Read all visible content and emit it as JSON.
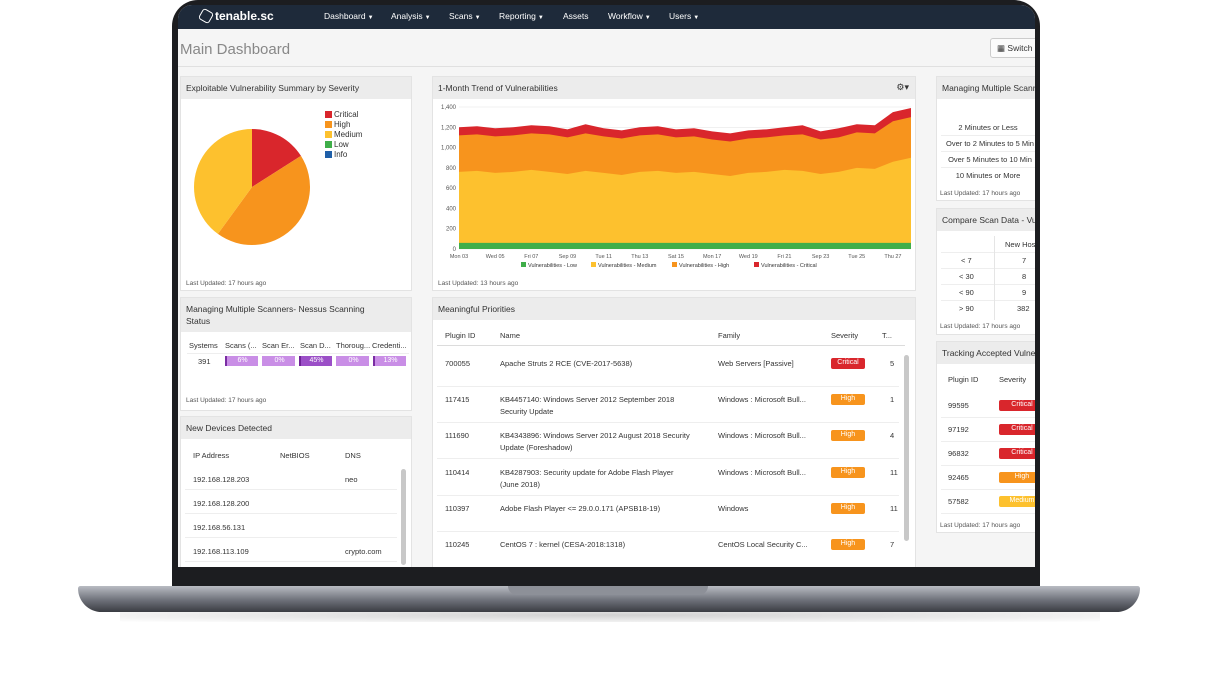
{
  "brand": {
    "name": "tenable.sc"
  },
  "nav": {
    "items": [
      {
        "label": "Dashboard"
      },
      {
        "label": "Analysis"
      },
      {
        "label": "Scans"
      },
      {
        "label": "Reporting"
      },
      {
        "label": "Assets"
      },
      {
        "label": "Workflow"
      },
      {
        "label": "Users"
      }
    ]
  },
  "page": {
    "title": "Main Dashboard",
    "switch_label": "Switch"
  },
  "colors": {
    "critical": "#d9262c",
    "high": "#f7941d",
    "medium": "#fdc12e",
    "low": "#3fae49",
    "info": "#1f5fa8",
    "nav_bg": "#1e2a3a"
  },
  "exploitable": {
    "title": "Exploitable Vulnerability Summary by Severity",
    "legend": [
      "Critical",
      "High",
      "Medium",
      "Low",
      "Info"
    ],
    "updated": "Last Updated: 17 hours ago",
    "chart_data": {
      "type": "pie",
      "categories": [
        "Critical",
        "High",
        "Medium",
        "Low",
        "Info"
      ],
      "values": [
        16,
        44,
        40,
        0,
        0
      ]
    }
  },
  "trend": {
    "title": "1-Month Trend of Vulnerabilities",
    "updated": "Last Updated: 13 hours ago",
    "chart_data": {
      "type": "area",
      "x": [
        "Mon 03",
        "",
        "Wed 05",
        "",
        "Fri 07",
        "",
        "Sep 09",
        "",
        "Tue 11",
        "",
        "Thu 13",
        "",
        "Sat 15",
        "",
        "Mon 17",
        "",
        "Wed 19",
        "",
        "Fri 21",
        "",
        "Sep 23",
        "",
        "Tue 25",
        "",
        "Thu 27",
        ""
      ],
      "ytick_labels": [
        "0",
        "200",
        "400",
        "600",
        "800",
        "1,000",
        "1,200",
        "1,400"
      ],
      "ylim": [
        0,
        1400
      ],
      "legend_placement": "bottom",
      "series": [
        {
          "name": "Vulnerabilities - Low",
          "values": [
            60,
            60,
            60,
            60,
            60,
            60,
            60,
            60,
            60,
            60,
            60,
            60,
            60,
            60,
            60,
            60,
            60,
            60,
            60,
            60,
            60,
            60,
            60,
            60,
            60,
            60
          ]
        },
        {
          "name": "Vulnerabilities - Medium",
          "values": [
            760,
            770,
            750,
            760,
            780,
            760,
            740,
            770,
            750,
            730,
            760,
            770,
            750,
            760,
            740,
            720,
            750,
            760,
            780,
            770,
            740,
            760,
            800,
            790,
            860,
            900
          ]
        },
        {
          "name": "Vulnerabilities - High",
          "values": [
            1120,
            1130,
            1110,
            1120,
            1140,
            1130,
            1100,
            1140,
            1110,
            1090,
            1120,
            1130,
            1100,
            1110,
            1080,
            1060,
            1090,
            1100,
            1120,
            1130,
            1080,
            1100,
            1150,
            1140,
            1260,
            1300
          ]
        },
        {
          "name": "Vulnerabilities - Critical",
          "values": [
            1200,
            1210,
            1190,
            1200,
            1220,
            1210,
            1180,
            1230,
            1190,
            1170,
            1200,
            1210,
            1180,
            1190,
            1160,
            1140,
            1170,
            1180,
            1200,
            1220,
            1160,
            1190,
            1230,
            1220,
            1350,
            1390
          ]
        }
      ]
    }
  },
  "scan_times": {
    "title": "Managing Multiple Scanners",
    "rows": [
      "2 Minutes or Less",
      "Over to 2 Minutes to 5 Min",
      "Over 5 Minutes to 10 Min",
      "10 Minutes or More"
    ],
    "updated": "Last Updated: 17 hours ago"
  },
  "compare": {
    "title": "Compare Scan Data - Vu",
    "header": "New Hos",
    "rows": [
      {
        "label": "< 7",
        "value": "7"
      },
      {
        "label": "< 30",
        "value": "8"
      },
      {
        "label": "< 90",
        "value": "9"
      },
      {
        "label": "> 90",
        "value": "382"
      }
    ],
    "updated": "Last Updated: 17 hours ago"
  },
  "tracking": {
    "title": "Tracking Accepted Vulnera",
    "headers": [
      "Plugin ID",
      "Severity"
    ],
    "rows": [
      {
        "id": "99595",
        "severity": "Critical"
      },
      {
        "id": "97192",
        "severity": "Critical"
      },
      {
        "id": "96832",
        "severity": "Critical"
      },
      {
        "id": "92465",
        "severity": "High"
      },
      {
        "id": "57582",
        "severity": "Medium"
      }
    ],
    "updated": "Last Updated: 17 hours ago"
  },
  "scanners": {
    "title_line1": "Managing Multiple Scanners- Nessus Scanning",
    "title_line2": "Status",
    "headers": [
      "Systems",
      "Scans (...",
      "Scan Er...",
      "Scan D...",
      "Thoroug...",
      "Credenti..."
    ],
    "systems": "391",
    "cells": [
      {
        "label": "6%",
        "value": 6
      },
      {
        "label": "0%",
        "value": 0
      },
      {
        "label": "45%",
        "value": 45
      },
      {
        "label": "0%",
        "value": 0
      },
      {
        "label": "13%",
        "value": 13
      }
    ],
    "updated": "Last Updated: 17 hours ago"
  },
  "devices": {
    "title": "New Devices Detected",
    "headers": [
      "IP Address",
      "NetBIOS",
      "DNS"
    ],
    "rows": [
      {
        "ip": "192.168.128.203",
        "netbios": "",
        "dns": "neo"
      },
      {
        "ip": "192.168.128.200",
        "netbios": "",
        "dns": ""
      },
      {
        "ip": "192.168.56.131",
        "netbios": "",
        "dns": ""
      },
      {
        "ip": "192.168.113.109",
        "netbios": "",
        "dns": "crypto.com"
      }
    ]
  },
  "priorities": {
    "title": "Meaningful Priorities",
    "headers": [
      "Plugin ID",
      "Name",
      "Family",
      "Severity",
      "T..."
    ],
    "rows": [
      {
        "id": "700055",
        "name1": "Apache Struts 2 RCE (CVE-2017-5638)",
        "name2": "",
        "family": "Web Servers [Passive]",
        "severity": "Critical",
        "total": "5"
      },
      {
        "id": "117415",
        "name1": "KB4457140: Windows Server 2012 September 2018",
        "name2": "Security Update",
        "family": "Windows : Microsoft Bull...",
        "severity": "High",
        "total": "1"
      },
      {
        "id": "111690",
        "name1": "KB4343896: Windows Server 2012 August 2018 Security",
        "name2": "Update (Foreshadow)",
        "family": "Windows : Microsoft Bull...",
        "severity": "High",
        "total": "4"
      },
      {
        "id": "110414",
        "name1": "KB4287903: Security update for Adobe Flash Player",
        "name2": "(June 2018)",
        "family": "Windows : Microsoft Bull...",
        "severity": "High",
        "total": "11"
      },
      {
        "id": "110397",
        "name1": "Adobe Flash Player <= 29.0.0.171 (APSB18-19)",
        "name2": "",
        "family": "Windows",
        "severity": "High",
        "total": "11"
      },
      {
        "id": "110245",
        "name1": "CentOS 7 : kernel (CESA-2018:1318)",
        "name2": "",
        "family": "CentOS Local Security C...",
        "severity": "High",
        "total": "7"
      }
    ]
  }
}
